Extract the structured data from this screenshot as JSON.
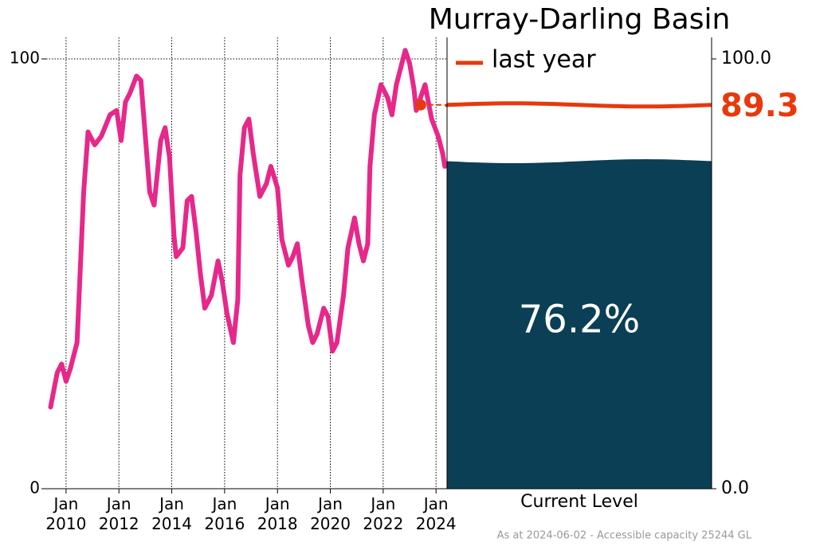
{
  "chart_data": [
    {
      "type": "line",
      "xlim": [
        "2009-04",
        "2024-06"
      ],
      "xticks": [
        {
          "value": "2010-01",
          "label": "Jan\n2010"
        },
        {
          "value": "2012-01",
          "label": "Jan\n2012"
        },
        {
          "value": "2014-01",
          "label": "Jan\n2014"
        },
        {
          "value": "2016-01",
          "label": "Jan\n2016"
        },
        {
          "value": "2018-01",
          "label": "Jan\n2018"
        },
        {
          "value": "2020-01",
          "label": "Jan\n2020"
        },
        {
          "value": "2022-01",
          "label": "Jan\n2022"
        },
        {
          "value": "2024-01",
          "label": "Jan\n2024"
        }
      ],
      "ylim": [
        0,
        105
      ],
      "yticks": [
        0,
        100
      ],
      "grid": true,
      "marker_x": "2023-06",
      "x": [
        "2009-06",
        "2009-09",
        "2009-11",
        "2010-01",
        "2010-03",
        "2010-06",
        "2010-09",
        "2010-11",
        "2011-02",
        "2011-05",
        "2011-09",
        "2011-12",
        "2012-02",
        "2012-04",
        "2012-06",
        "2012-09",
        "2012-11",
        "2013-01",
        "2013-03",
        "2013-05",
        "2013-08",
        "2013-10",
        "2013-12",
        "2014-02",
        "2014-03",
        "2014-06",
        "2014-08",
        "2014-10",
        "2014-12",
        "2015-02",
        "2015-04",
        "2015-07",
        "2015-10",
        "2015-12",
        "2016-02",
        "2016-05",
        "2016-07",
        "2016-08",
        "2016-10",
        "2016-12",
        "2017-02",
        "2017-05",
        "2017-08",
        "2017-10",
        "2018-01",
        "2018-03",
        "2018-06",
        "2018-08",
        "2018-10",
        "2018-12",
        "2019-03",
        "2019-05",
        "2019-07",
        "2019-10",
        "2019-12",
        "2020-02",
        "2020-04",
        "2020-07",
        "2020-09",
        "2020-12",
        "2021-02",
        "2021-04",
        "2021-06",
        "2021-07",
        "2021-09",
        "2021-12",
        "2022-03",
        "2022-05",
        "2022-07",
        "2022-09",
        "2022-11",
        "2023-01",
        "2023-03",
        "2023-04",
        "2023-06",
        "2023-08",
        "2023-11",
        "2024-02",
        "2024-04",
        "2024-05"
      ],
      "series": [
        {
          "color": "#e6288a",
          "values": [
            19,
            27,
            29,
            25,
            28,
            34,
            69,
            83,
            80,
            82,
            87,
            88,
            81,
            90,
            92,
            96,
            95,
            82,
            69,
            66,
            81,
            84,
            77,
            59,
            54,
            56,
            67,
            68,
            60,
            50,
            42,
            45,
            53,
            48,
            41,
            34,
            44,
            73,
            84,
            86,
            78,
            68,
            71,
            75,
            70,
            58,
            52,
            54,
            57,
            49,
            38,
            34,
            36,
            42,
            40,
            32,
            34,
            45,
            56,
            63,
            57,
            53,
            57,
            75,
            87,
            94,
            91,
            87,
            94,
            98,
            102,
            99,
            93,
            88,
            91,
            94,
            86,
            82,
            78,
            75
          ]
        }
      ]
    },
    {
      "type": "bar",
      "title": "Murray-Darling Basin",
      "categories": [
        "Current Level"
      ],
      "values": [
        76.2
      ],
      "value_labels": [
        "76.2%"
      ],
      "color": "#0a3f55",
      "ylim": [
        0,
        105
      ],
      "yticks": [
        {
          "value": 0,
          "label": "0.0"
        },
        {
          "value": 100,
          "label": "100.0"
        }
      ],
      "reference": {
        "name": "last year",
        "value": 89.3,
        "color": "#e8380d"
      },
      "legend": "upper left",
      "note": "As at 2024-06-02 - Accessible capacity 25244 GL"
    }
  ]
}
